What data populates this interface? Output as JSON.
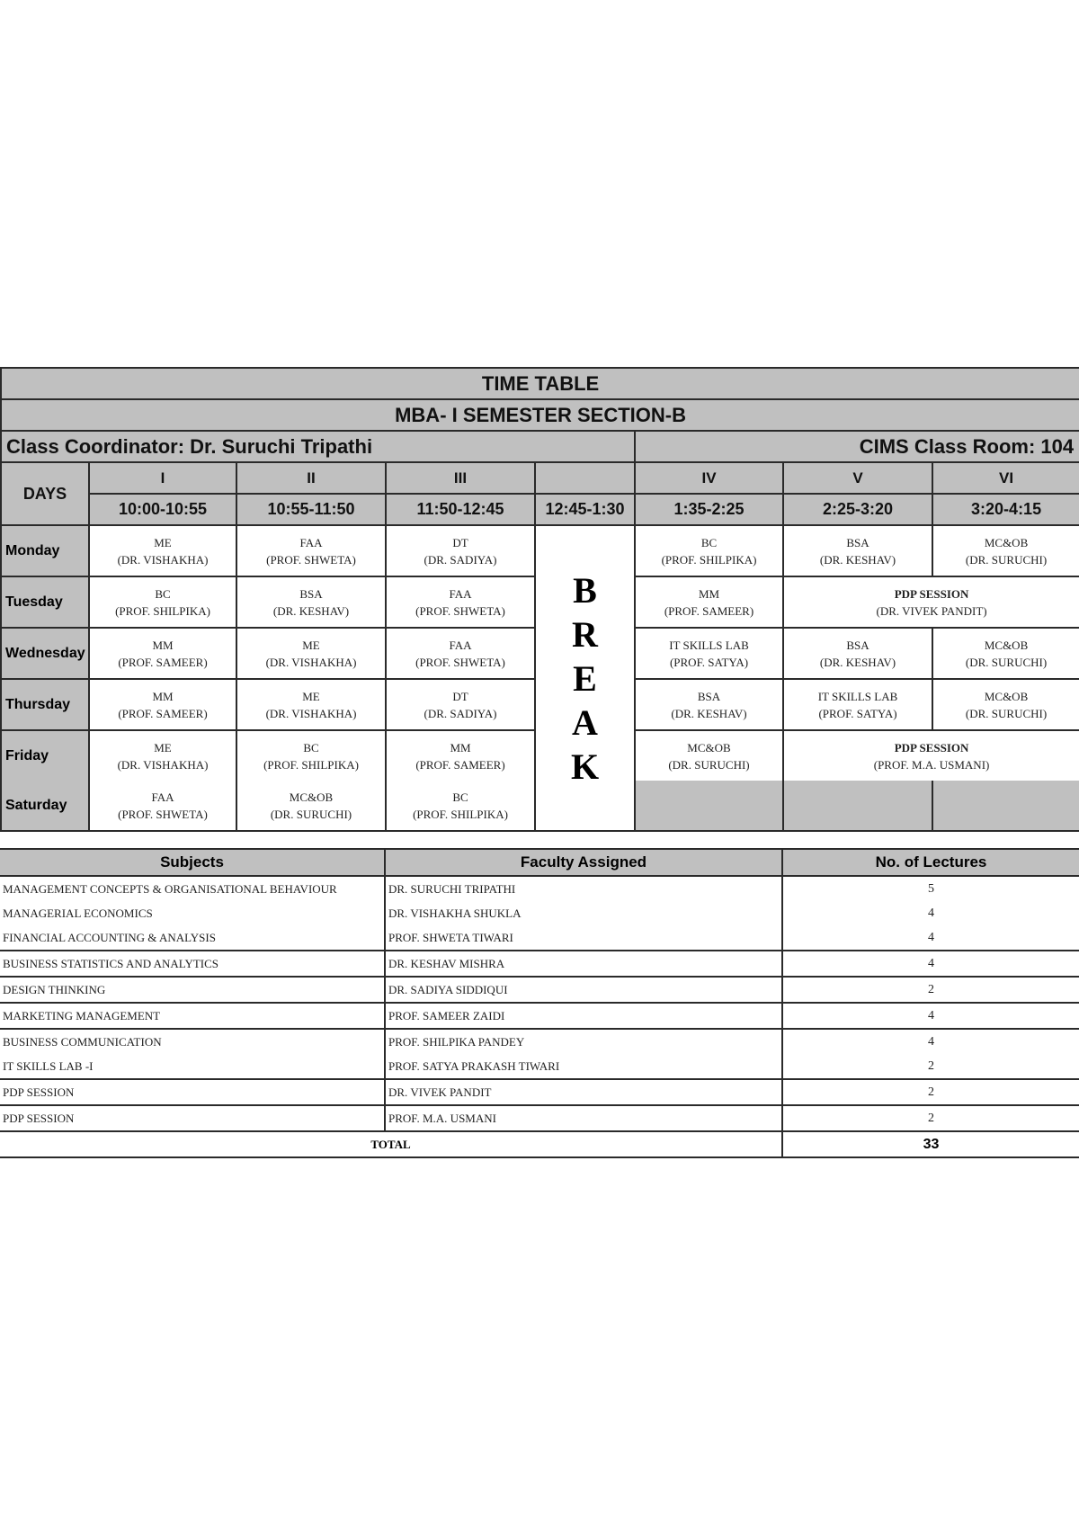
{
  "title": "TIME TABLE",
  "subtitle": "MBA- I SEMESTER SECTION-B",
  "coordinator": "Class Coordinator: Dr. Suruchi Tripathi",
  "classroom": "CIMS Class Room: 104",
  "days_label": "DAYS",
  "periods": [
    "I",
    "II",
    "III",
    "",
    "IV",
    "V",
    "VI"
  ],
  "times": [
    "10:00-10:55",
    "10:55-11:50",
    "11:50-12:45",
    "12:45-1:30",
    "1:35-2:25",
    "2:25-3:20",
    "3:20-4:15"
  ],
  "break_letters": [
    "B",
    "R",
    "E",
    "A",
    "K"
  ],
  "colors": {
    "header_bg": "#c0c0c0",
    "cell_bg": "#ffffff",
    "border": "#2a2a2a"
  },
  "schedule": [
    {
      "day": "Monday",
      "morning": [
        [
          "ME",
          "(DR. VISHAKHA)"
        ],
        [
          "FAA",
          "(PROF. SHWETA)"
        ],
        [
          "DT",
          "(DR. SADIYA)"
        ]
      ],
      "afternoon": [
        [
          "BC",
          "(PROF. SHILPIKA)"
        ],
        [
          "BSA",
          "(DR. KESHAV)"
        ],
        [
          "MC&OB",
          "(DR. SURUCHI)"
        ]
      ]
    },
    {
      "day": "Tuesday",
      "morning": [
        [
          "BC",
          "(PROF. SHILPIKA)"
        ],
        [
          "BSA",
          "(DR. KESHAV)"
        ],
        [
          "FAA",
          "(PROF. SHWETA)"
        ]
      ],
      "afternoon": [
        [
          "MM",
          "(PROF. SAMEER)"
        ]
      ],
      "span": [
        "PDP SESSION",
        "(DR. VIVEK PANDIT)"
      ]
    },
    {
      "day": "Wednesday",
      "morning": [
        [
          "MM",
          "(PROF. SAMEER)"
        ],
        [
          "ME",
          "(DR. VISHAKHA)"
        ],
        [
          "FAA",
          "(PROF. SHWETA)"
        ]
      ],
      "afternoon": [
        [
          "IT SKILLS LAB",
          "(PROF. SATYA)"
        ],
        [
          "BSA",
          "(DR. KESHAV)"
        ],
        [
          "MC&OB",
          "(DR. SURUCHI)"
        ]
      ]
    },
    {
      "day": "Thursday",
      "morning": [
        [
          "MM",
          "(PROF. SAMEER)"
        ],
        [
          "ME",
          "(DR. VISHAKHA)"
        ],
        [
          "DT",
          "(DR. SADIYA)"
        ]
      ],
      "afternoon": [
        [
          "BSA",
          "(DR. KESHAV)"
        ],
        [
          "IT SKILLS LAB",
          "(PROF. SATYA)"
        ],
        [
          "MC&OB",
          "(DR. SURUCHI)"
        ]
      ]
    },
    {
      "day": "Friday",
      "morning": [
        [
          "ME",
          "(DR. VISHAKHA)"
        ],
        [
          "BC",
          "(PROF. SHILPIKA)"
        ],
        [
          "MM",
          "(PROF. SAMEER)"
        ]
      ],
      "afternoon": [
        [
          "MC&OB",
          "(DR. SURUCHI)"
        ]
      ],
      "span": [
        "PDP SESSION",
        "(PROF. M.A. USMANI)"
      ]
    },
    {
      "day": "Saturday",
      "morning": [
        [
          "FAA",
          "(PROF. SHWETA)"
        ],
        [
          "MC&OB",
          "(DR. SURUCHI)"
        ],
        [
          "BC",
          "(PROF. SHILPIKA)"
        ]
      ],
      "afternoon": []
    }
  ],
  "summary": {
    "headers": [
      "Subjects",
      "Faculty Assigned",
      "No. of Lectures"
    ],
    "rows": [
      [
        "MANAGEMENT CONCEPTS & ORGANISATIONAL BEHAVIOUR",
        "DR. SURUCHI TRIPATHI",
        "5"
      ],
      [
        "MANAGERIAL ECONOMICS",
        "DR. VISHAKHA SHUKLA",
        "4"
      ],
      [
        "FINANCIAL ACCOUNTING & ANALYSIS",
        "PROF. SHWETA TIWARI",
        "4"
      ],
      [
        "BUSINESS STATISTICS AND ANALYTICS",
        "DR. KESHAV MISHRA",
        "4"
      ],
      [
        "DESIGN THINKING",
        "DR. SADIYA SIDDIQUI",
        "2"
      ],
      [
        "MARKETING MANAGEMENT",
        "PROF. SAMEER ZAIDI",
        "4"
      ],
      [
        "BUSINESS COMMUNICATION",
        "PROF. SHILPIKA PANDEY",
        "4"
      ],
      [
        "IT SKILLS LAB -I",
        "PROF. SATYA PRAKASH TIWARI",
        "2"
      ],
      [
        "PDP SESSION",
        "DR. VIVEK PANDIT",
        "2"
      ],
      [
        "PDP SESSION",
        "PROF. M.A. USMANI",
        "2"
      ]
    ],
    "total_label": "TOTAL",
    "total_value": "33"
  }
}
